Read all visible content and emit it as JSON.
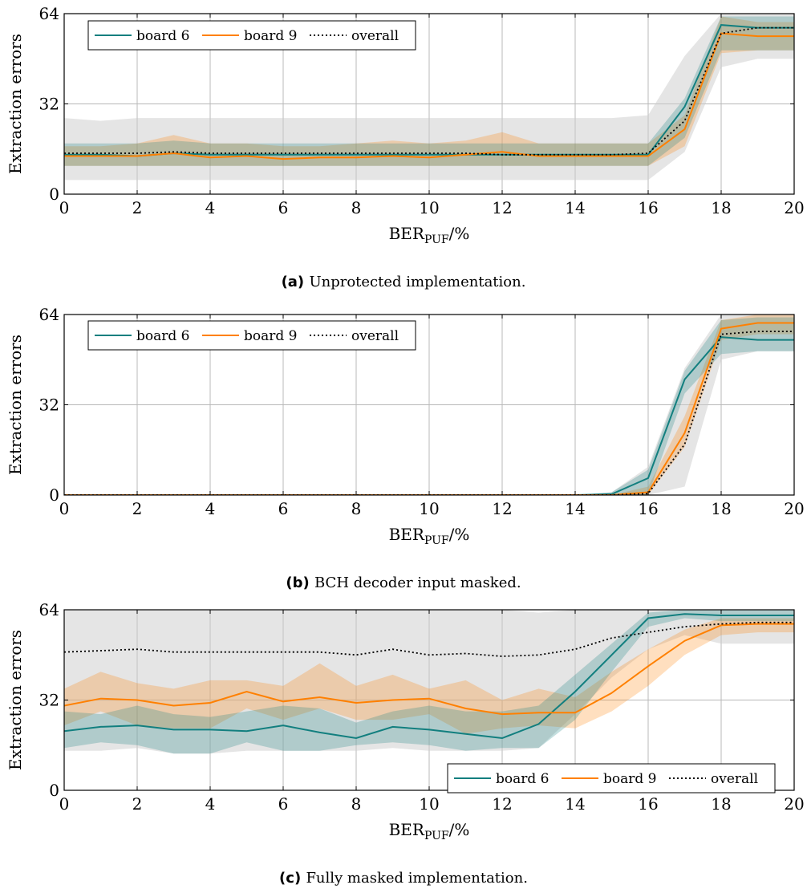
{
  "colors": {
    "board6": "#127f7f",
    "board9": "#ff8000",
    "overall": "#000000",
    "band_gray": "#cccccc"
  },
  "chart_data": [
    {
      "type": "line",
      "panel_label": "(a)",
      "caption": "Unprotected implementation.",
      "xlabel_main": "BER",
      "xlabel_sub": "PUF",
      "xlabel_unit": "/%",
      "ylabel": "Extraction errors",
      "xlim": [
        0,
        20
      ],
      "ylim": [
        0,
        64
      ],
      "xticks": [
        0,
        2,
        4,
        6,
        8,
        10,
        12,
        14,
        16,
        18,
        20
      ],
      "yticks": [
        0,
        32,
        64
      ],
      "grid": true,
      "legend_position": "top-left",
      "x": [
        0,
        1,
        2,
        3,
        4,
        5,
        6,
        7,
        8,
        9,
        10,
        11,
        12,
        13,
        14,
        15,
        16,
        17,
        18,
        19,
        20
      ],
      "series": [
        {
          "name": "board 6",
          "color_key": "board6",
          "style": "solid",
          "values": [
            14,
            14,
            13.5,
            14.5,
            14,
            14,
            14,
            14,
            14,
            14,
            14,
            14,
            14,
            14,
            14,
            14,
            14,
            31,
            60,
            59,
            59
          ],
          "band_low": [
            10,
            10,
            10,
            10,
            10,
            10,
            10,
            10,
            10,
            10,
            10,
            10,
            10,
            10,
            10,
            10,
            10,
            20,
            51,
            51,
            51
          ],
          "band_high": [
            18,
            18,
            18,
            19,
            18,
            18,
            18,
            18,
            18,
            18,
            18,
            18,
            18,
            18,
            18,
            18,
            18,
            34,
            63,
            63,
            63
          ]
        },
        {
          "name": "board 9",
          "color_key": "board9",
          "style": "solid",
          "values": [
            13.5,
            13.5,
            13.5,
            14.5,
            13,
            13.5,
            12.5,
            13,
            13,
            13.5,
            13,
            14,
            15,
            13.5,
            13.5,
            13.5,
            13.5,
            23,
            57,
            56,
            56
          ],
          "band_low": [
            10,
            10,
            10,
            10,
            10,
            10,
            10,
            10,
            10,
            10,
            10,
            10,
            10,
            10,
            10,
            10,
            10,
            17,
            50,
            51,
            51
          ],
          "band_high": [
            17,
            17,
            18,
            21,
            18,
            18,
            17,
            17,
            18,
            19,
            18,
            19,
            22,
            18,
            18,
            18,
            18,
            28,
            63,
            61,
            61
          ]
        },
        {
          "name": "overall",
          "color_key": "overall",
          "style": "dotted",
          "values": [
            14.5,
            14.5,
            14.5,
            15,
            14.5,
            14.5,
            14.5,
            14.5,
            14.5,
            14.5,
            14.5,
            14.5,
            14,
            14,
            14,
            14,
            14.5,
            26,
            57,
            59,
            59
          ],
          "band_low": [
            5,
            5,
            5,
            5,
            5,
            5,
            5,
            5,
            5,
            5,
            5,
            5,
            5,
            5,
            5,
            5,
            5,
            15,
            45,
            48,
            48
          ],
          "band_high": [
            27,
            26,
            27,
            27,
            27,
            27,
            27,
            27,
            27,
            27,
            27,
            27,
            27,
            27,
            27,
            27,
            28,
            49,
            64,
            64,
            64
          ]
        }
      ]
    },
    {
      "type": "line",
      "panel_label": "(b)",
      "caption": "BCH decoder input masked.",
      "xlabel_main": "BER",
      "xlabel_sub": "PUF",
      "xlabel_unit": "/%",
      "ylabel": "Extraction errors",
      "xlim": [
        0,
        20
      ],
      "ylim": [
        0,
        64
      ],
      "xticks": [
        0,
        2,
        4,
        6,
        8,
        10,
        12,
        14,
        16,
        18,
        20
      ],
      "yticks": [
        0,
        32,
        64
      ],
      "grid": true,
      "legend_position": "top-left",
      "x": [
        0,
        1,
        2,
        3,
        4,
        5,
        6,
        7,
        8,
        9,
        10,
        11,
        12,
        13,
        14,
        15,
        16,
        17,
        18,
        19,
        20
      ],
      "series": [
        {
          "name": "board 6",
          "color_key": "board6",
          "style": "solid",
          "values": [
            0,
            0,
            0,
            0,
            0,
            0,
            0,
            0,
            0,
            0,
            0,
            0,
            0,
            0,
            0,
            0.3,
            6,
            41,
            56,
            55,
            55
          ],
          "band_low": [
            0,
            0,
            0,
            0,
            0,
            0,
            0,
            0,
            0,
            0,
            0,
            0,
            0,
            0,
            0,
            0,
            0,
            36,
            50,
            51,
            51
          ],
          "band_high": [
            0,
            0,
            0,
            0,
            0,
            0,
            0,
            0,
            0,
            0,
            0,
            0,
            0,
            0,
            0,
            1,
            9,
            44,
            62,
            63,
            63
          ]
        },
        {
          "name": "board 9",
          "color_key": "board9",
          "style": "solid",
          "values": [
            0,
            0,
            0,
            0,
            0,
            0,
            0,
            0,
            0,
            0,
            0,
            0,
            0,
            0,
            0,
            0,
            1,
            22,
            59,
            61,
            61
          ],
          "band_low": [
            0,
            0,
            0,
            0,
            0,
            0,
            0,
            0,
            0,
            0,
            0,
            0,
            0,
            0,
            0,
            0,
            0,
            17,
            55,
            57,
            57
          ],
          "band_high": [
            0,
            0,
            0,
            0,
            0,
            0,
            0,
            0,
            0,
            0,
            0,
            0,
            0,
            0,
            0,
            0,
            3,
            28,
            62,
            64,
            64
          ]
        },
        {
          "name": "overall",
          "color_key": "overall",
          "style": "dotted",
          "values": [
            0,
            0,
            0,
            0,
            0,
            0,
            0,
            0,
            0,
            0,
            0,
            0,
            0,
            0,
            0,
            0,
            0.5,
            18,
            57,
            58,
            58
          ],
          "band_low": [
            0,
            0,
            0,
            0,
            0,
            0,
            0,
            0,
            0,
            0,
            0,
            0,
            0,
            0,
            0,
            0,
            0,
            3,
            48,
            51,
            51
          ],
          "band_high": [
            0,
            0,
            0,
            0,
            0,
            0,
            0,
            0,
            0,
            0,
            0,
            0,
            0,
            0,
            0,
            1,
            10,
            45,
            64,
            64,
            64
          ]
        }
      ]
    },
    {
      "type": "line",
      "panel_label": "(c)",
      "caption": "Fully masked implementation.",
      "xlabel_main": "BER",
      "xlabel_sub": "PUF",
      "xlabel_unit": "/%",
      "ylabel": "Extraction errors",
      "xlim": [
        0,
        20
      ],
      "ylim": [
        0,
        64
      ],
      "xticks": [
        0,
        2,
        4,
        6,
        8,
        10,
        12,
        14,
        16,
        18,
        20
      ],
      "yticks": [
        0,
        32,
        64
      ],
      "grid": true,
      "legend_position": "bottom-right",
      "x": [
        0,
        1,
        2,
        3,
        4,
        5,
        6,
        7,
        8,
        9,
        10,
        11,
        12,
        13,
        14,
        15,
        16,
        17,
        18,
        19,
        20
      ],
      "series": [
        {
          "name": "board 6",
          "color_key": "board6",
          "style": "solid",
          "values": [
            21,
            22.5,
            23,
            21.5,
            21.5,
            21,
            23,
            20.5,
            18.5,
            22.5,
            21.5,
            20,
            18.5,
            23.5,
            35,
            48,
            61,
            62.5,
            62,
            62,
            62
          ],
          "band_low": [
            15,
            17,
            16,
            13,
            13,
            17,
            14,
            14,
            16,
            17,
            16,
            14,
            15,
            15,
            25,
            42,
            58,
            61,
            60,
            60,
            60
          ],
          "band_high": [
            28,
            27,
            30,
            27,
            26,
            28,
            30,
            29,
            24,
            28,
            30,
            28,
            28,
            30,
            41,
            52,
            63,
            64,
            64,
            64,
            64
          ]
        },
        {
          "name": "board 9",
          "color_key": "board9",
          "style": "solid",
          "values": [
            30,
            32.5,
            32,
            30,
            31,
            35,
            31.5,
            33,
            31,
            32,
            32.5,
            29,
            27,
            27.5,
            27.5,
            34.5,
            44,
            53,
            58.5,
            59,
            59
          ],
          "band_low": [
            23,
            28,
            23,
            22,
            22,
            29,
            25,
            29,
            25,
            25,
            27,
            20,
            22,
            23,
            22,
            28,
            37,
            48,
            55,
            56,
            56
          ],
          "band_high": [
            36,
            42,
            38,
            36,
            39,
            39,
            37,
            45,
            37,
            41,
            36,
            39,
            32,
            36,
            33,
            42,
            50,
            57,
            61,
            61,
            61
          ]
        },
        {
          "name": "overall",
          "color_key": "overall",
          "style": "dotted",
          "values": [
            49,
            49.5,
            50,
            49,
            49,
            49,
            49,
            49,
            48,
            50,
            48,
            48.5,
            47.5,
            48,
            50,
            54,
            56,
            58,
            59,
            59.5,
            59.5
          ],
          "band_low": [
            14,
            14,
            15,
            13,
            13,
            14,
            14,
            14,
            14,
            15,
            14,
            14,
            14,
            15,
            27,
            40,
            50,
            55,
            52,
            52,
            52
          ],
          "band_high": [
            64,
            64,
            64,
            64,
            64,
            64,
            64,
            64,
            64,
            64,
            64,
            64,
            64,
            63,
            64,
            64,
            64,
            64,
            64,
            64,
            64
          ]
        }
      ]
    }
  ]
}
